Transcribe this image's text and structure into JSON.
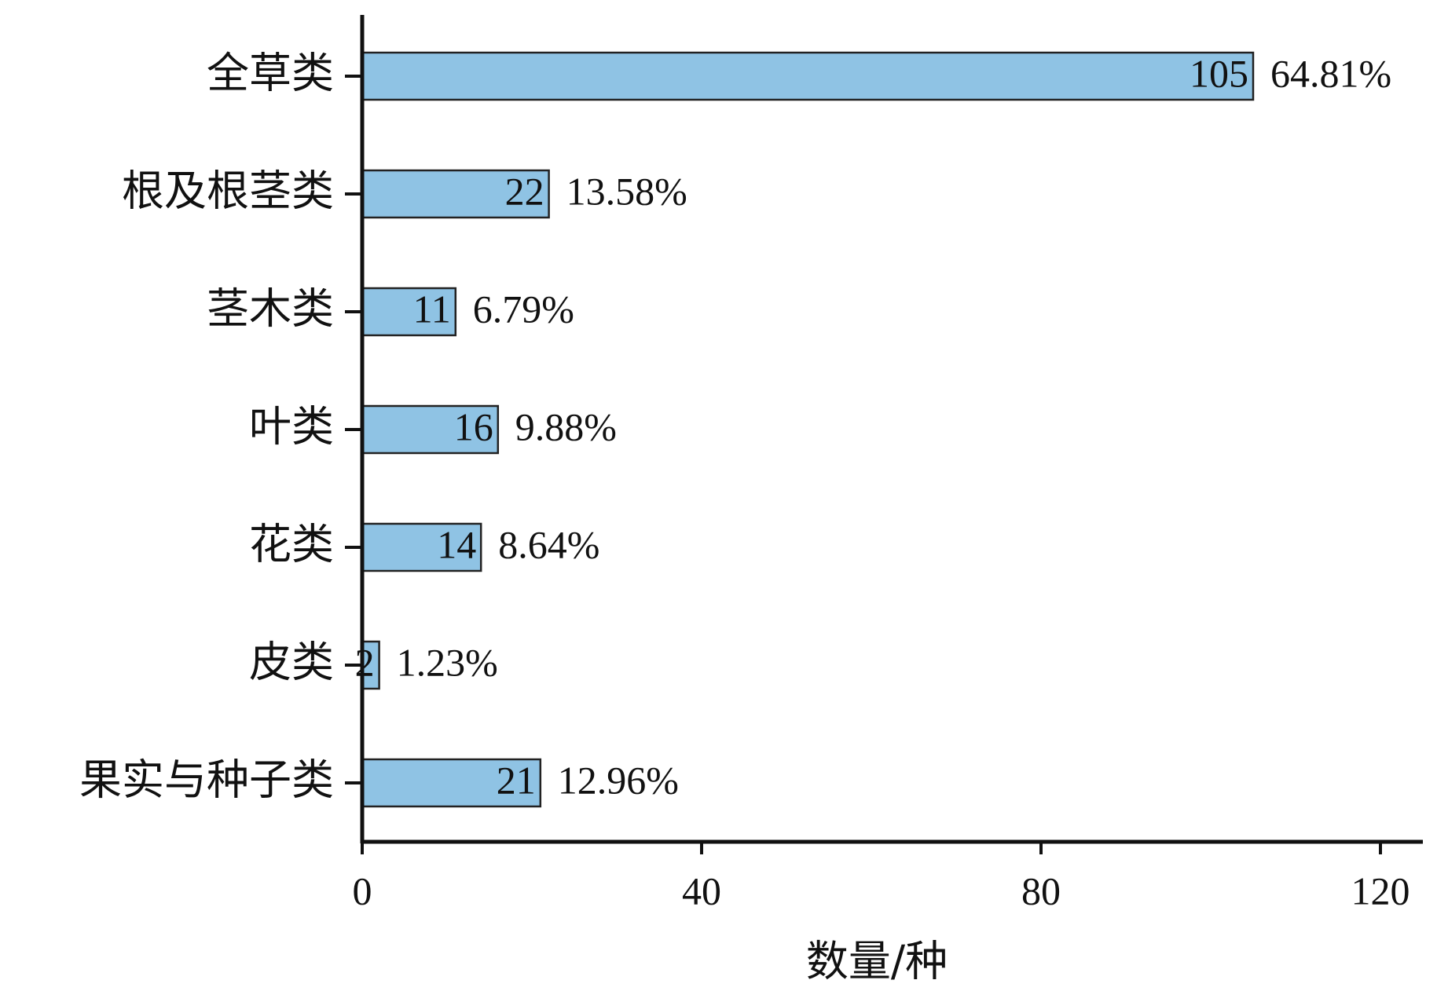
{
  "chart_data": {
    "type": "bar",
    "orientation": "horizontal",
    "categories": [
      "全草类",
      "根及根茎类",
      "茎木类",
      "叶类",
      "花类",
      "皮类",
      "果实与种子类"
    ],
    "values": [
      105,
      22,
      11,
      16,
      14,
      2,
      21
    ],
    "percent_values": [
      64.81,
      13.58,
      6.79,
      9.88,
      8.64,
      1.23,
      12.96
    ],
    "percent_labels": [
      "64.81%",
      "13.58%",
      "6.79%",
      "9.88%",
      "8.64%",
      "1.23%",
      "12.96%"
    ],
    "color": "#8fc3e4",
    "xlim": [
      0,
      125
    ],
    "xticks": [
      0,
      40,
      80,
      120
    ],
    "x_label": "数量/种",
    "grid": false
  }
}
